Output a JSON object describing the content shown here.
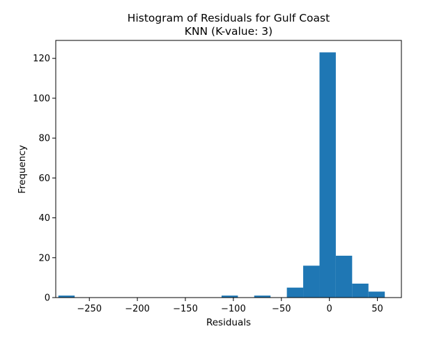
{
  "chart_data": {
    "type": "bar",
    "title": "Histogram of Residuals for Gulf Coast",
    "subtitle": "KNN (K-value: 3)",
    "xlabel": "Residuals",
    "ylabel": "Frequency",
    "xlim": [
      -285,
      75
    ],
    "ylim": [
      0,
      129
    ],
    "xticks": [
      -250,
      -200,
      -150,
      -100,
      -50,
      0,
      50
    ],
    "xtick_labels": [
      "−250",
      "−200",
      "−150",
      "−100",
      "−50",
      "0",
      "50"
    ],
    "yticks": [
      0,
      20,
      40,
      60,
      80,
      100,
      120
    ],
    "ytick_labels": [
      "0",
      "20",
      "40",
      "60",
      "80",
      "100",
      "120"
    ],
    "bin_start": -282.3,
    "bin_width": 17.0,
    "counts": [
      1,
      0,
      0,
      0,
      0,
      0,
      0,
      0,
      0,
      0,
      1,
      0,
      1,
      0,
      5,
      16,
      123,
      21,
      7,
      3
    ],
    "bar_color": "#1f77b4",
    "grid": false,
    "legend": "none"
  }
}
